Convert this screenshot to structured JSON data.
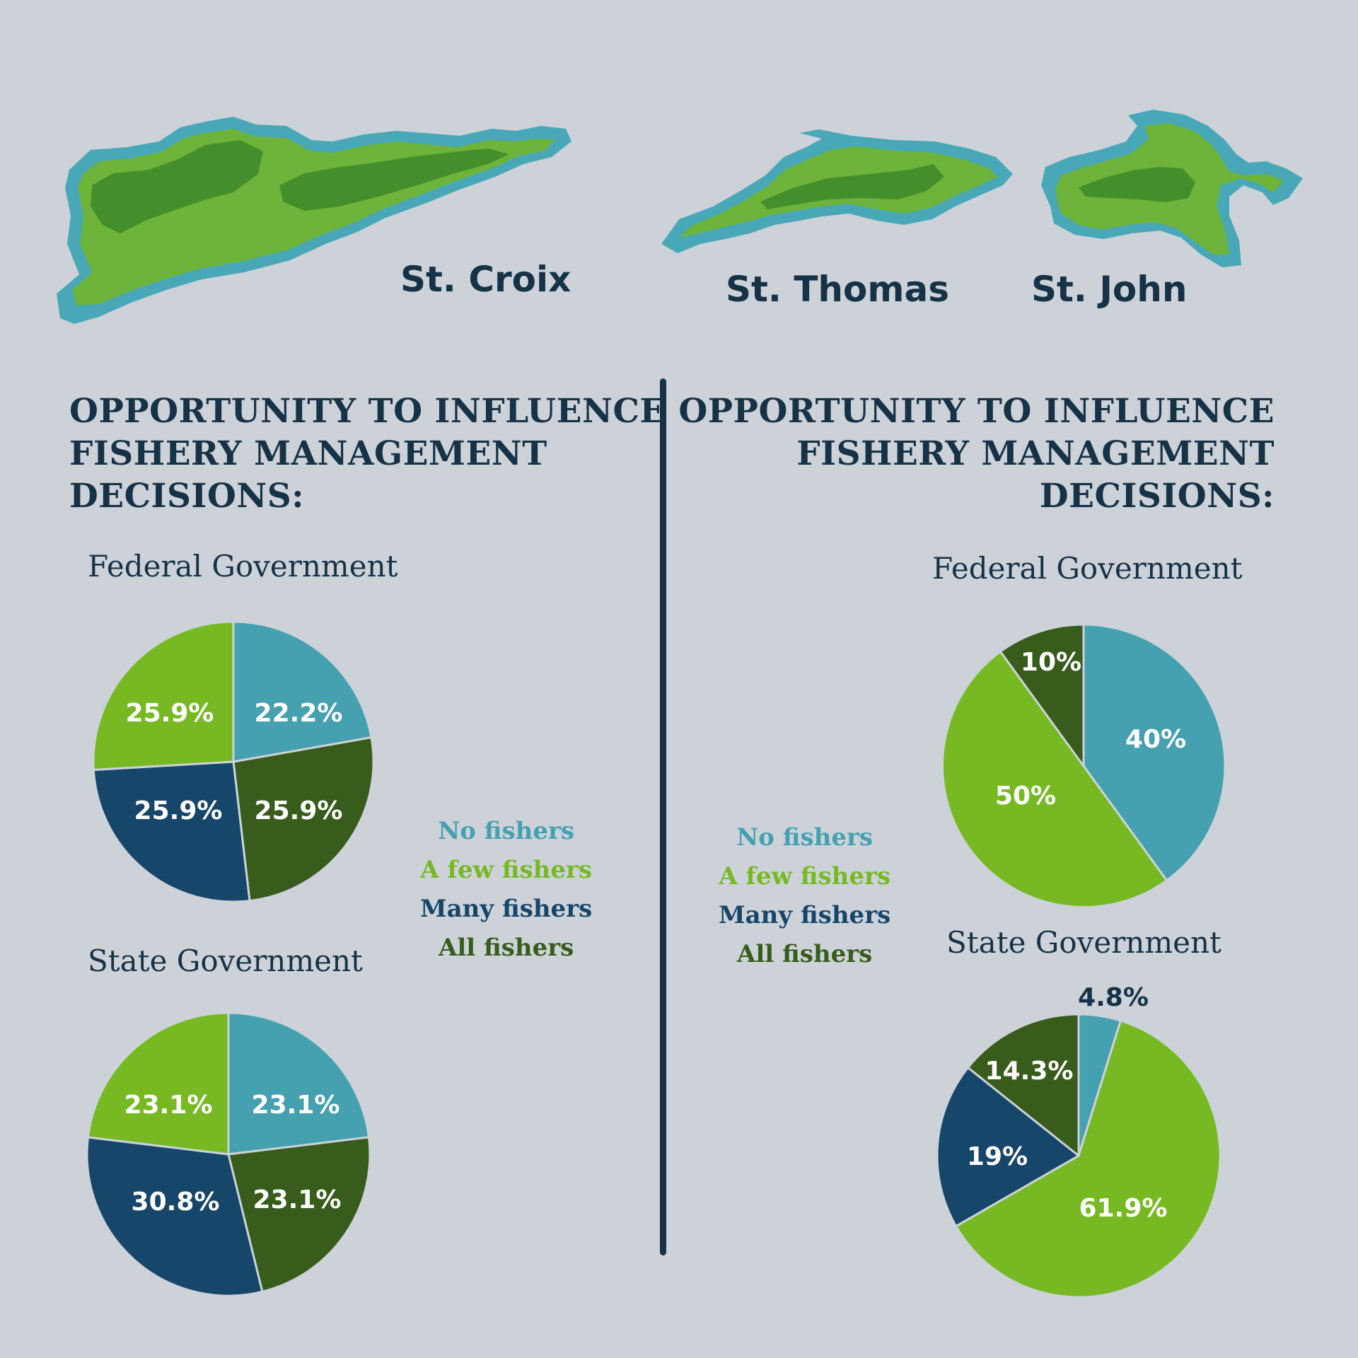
{
  "islands": [
    {
      "name": "St. Croix"
    },
    {
      "name": "St. Thomas"
    },
    {
      "name": "St. John"
    }
  ],
  "colors": {
    "background": "#cdd2d9",
    "text": "#163246",
    "no_fishers": "#45a0b0",
    "a_few_fishers": "#76b922",
    "many_fishers": "#17466b",
    "all_fishers": "#385c1b",
    "island_light": "#6eb43a",
    "island_dark": "#448f2c",
    "island_edge": "#48a8b8"
  },
  "left": {
    "heading": [
      "OPPORTUNITY TO INFLUENCE",
      "FISHERY MANAGEMENT",
      "DECISIONS:"
    ],
    "federal_title": "Federal Government",
    "state_title": "State Government"
  },
  "right": {
    "heading": [
      "OPPORTUNITY TO INFLUENCE",
      "FISHERY MANAGEMENT",
      "DECISIONS:"
    ],
    "federal_title": "Federal Government",
    "state_title": "State Government"
  },
  "legend": {
    "items": [
      {
        "label": "No fishers",
        "color": "#45a0b0"
      },
      {
        "label": "A few fishers",
        "color": "#76b922"
      },
      {
        "label": "Many fishers",
        "color": "#17466b"
      },
      {
        "label": "All fishers",
        "color": "#385c1b"
      }
    ]
  },
  "chart_data": [
    {
      "type": "pie",
      "title": "Federal Government",
      "categories": [
        "No fishers",
        "All fishers",
        "Many fishers",
        "A few fishers"
      ],
      "values": [
        22.2,
        25.9,
        25.9,
        25.9
      ],
      "labels": [
        "22.2%",
        "25.9%",
        "25.9%",
        "25.9%"
      ],
      "colors": [
        "#45a0b0",
        "#385c1b",
        "#17466b",
        "#76b922"
      ]
    },
    {
      "type": "pie",
      "title": "State Government",
      "categories": [
        "No fishers",
        "All fishers",
        "Many fishers",
        "A few fishers"
      ],
      "values": [
        23.1,
        23.1,
        30.8,
        23.1
      ],
      "labels": [
        "23.1%",
        "23.1%",
        "30.8%",
        "23.1%"
      ],
      "colors": [
        "#45a0b0",
        "#385c1b",
        "#17466b",
        "#76b922"
      ]
    },
    {
      "type": "pie",
      "title": "Federal Government",
      "categories": [
        "No fishers",
        "A few fishers",
        "All fishers"
      ],
      "values": [
        40,
        50,
        10
      ],
      "labels": [
        "40%",
        "50%",
        "10%"
      ],
      "colors": [
        "#45a0b0",
        "#76b922",
        "#385c1b"
      ]
    },
    {
      "type": "pie",
      "title": "State Government",
      "categories": [
        "No fishers",
        "A few fishers",
        "Many fishers",
        "All fishers"
      ],
      "values": [
        4.8,
        61.9,
        19,
        14.3
      ],
      "labels": [
        "4.8%",
        "61.9%",
        "19%",
        "14.3%"
      ],
      "colors": [
        "#45a0b0",
        "#76b922",
        "#17466b",
        "#385c1b"
      ]
    }
  ]
}
